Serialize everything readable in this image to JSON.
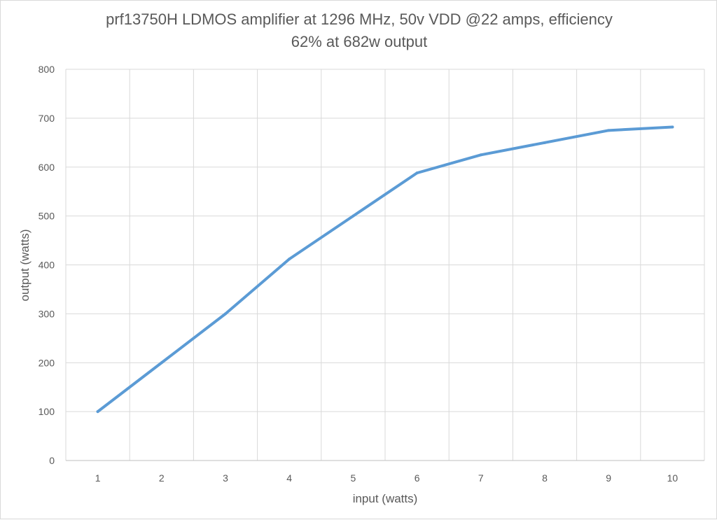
{
  "chart_data": {
    "type": "line",
    "title_line1": "prf13750H LDMOS amplifier at 1296 MHz, 50v VDD @22 amps, efficiency",
    "title_line2": "62% at 682w output",
    "xlabel": "input (watts)",
    "ylabel": "output (watts)",
    "categories": [
      "1",
      "2",
      "3",
      "4",
      "5",
      "6",
      "7",
      "8",
      "9",
      "10"
    ],
    "series": [
      {
        "name": "output",
        "values": [
          100,
          200,
          300,
          412,
          500,
          588,
          625,
          650,
          675,
          682
        ],
        "color": "#5b9bd5"
      }
    ],
    "ylim": [
      0,
      800
    ],
    "yticks": [
      "0",
      "100",
      "200",
      "300",
      "400",
      "500",
      "600",
      "700",
      "800"
    ],
    "grid": true,
    "legend": "none"
  }
}
